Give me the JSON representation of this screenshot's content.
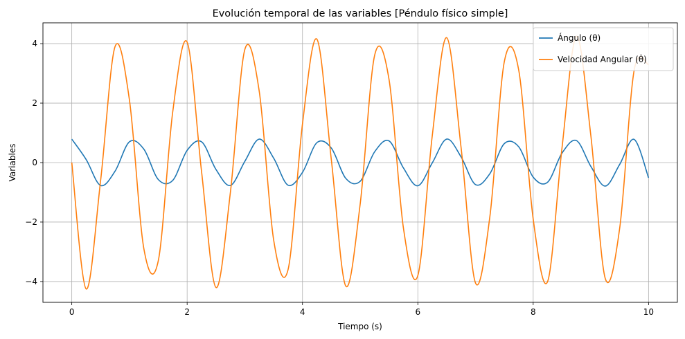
{
  "chart_data": {
    "type": "line",
    "title": "Evolución temporal de las variables [Péndulo físico simple]",
    "xlabel": "Tiempo (s)",
    "ylabel": "Variables",
    "xlim": [
      -0.5,
      10.5
    ],
    "ylim": [
      -4.7,
      4.7
    ],
    "xticks": [
      0,
      2,
      4,
      6,
      8,
      10
    ],
    "xtick_labels": [
      "0",
      "2",
      "4",
      "6",
      "8",
      "10"
    ],
    "yticks": [
      -4,
      -2,
      0,
      2,
      4
    ],
    "ytick_labels": [
      "−4",
      "−2",
      "0",
      "2",
      "4"
    ],
    "grid": true,
    "legend_position": "top-right",
    "x": [
      0,
      0.25,
      0.5,
      0.75,
      1,
      1.25,
      1.5,
      1.75,
      2,
      2.25,
      2.5,
      2.75,
      3,
      3.25,
      3.5,
      3.75,
      4,
      4.25,
      4.5,
      4.75,
      5,
      5.25,
      5.5,
      5.75,
      6,
      6.25,
      6.5,
      6.75,
      7,
      7.25,
      7.5,
      7.75,
      8,
      8.25,
      8.5,
      8.75,
      9,
      9.25,
      9.5,
      9.75,
      10
    ],
    "series": [
      {
        "name": "Ángulo (θ)",
        "color": "#1f77b4",
        "values": [
          0.79,
          0.1,
          -0.77,
          -0.29,
          0.7,
          0.45,
          -0.57,
          -0.6,
          0.41,
          0.7,
          -0.23,
          -0.77,
          0.04,
          0.79,
          0.15,
          -0.76,
          -0.33,
          0.67,
          0.49,
          -0.53,
          -0.63,
          0.36,
          0.73,
          -0.18,
          -0.78,
          -0.01,
          0.79,
          0.19,
          -0.74,
          -0.37,
          0.64,
          0.53,
          -0.49,
          -0.66,
          0.32,
          0.74,
          -0.13,
          -0.79,
          -0.06,
          0.78,
          -0.51
        ]
      },
      {
        "name": "Velocidad Angular (θ̇)",
        "color": "#ff7f0e",
        "values": [
          0.0,
          -4.25,
          -0.6,
          3.9,
          2.1,
          -2.9,
          -3.3,
          1.7,
          4.05,
          -0.3,
          -4.2,
          -1.0,
          3.8,
          2.4,
          -2.6,
          -3.6,
          1.3,
          4.15,
          0.1,
          -4.15,
          -1.4,
          3.6,
          2.8,
          -2.2,
          -3.8,
          0.9,
          4.2,
          0.5,
          -4.05,
          -1.8,
          3.4,
          3.1,
          -1.9,
          -4.0,
          0.5,
          4.25,
          0.9,
          -3.9,
          -2.2,
          3.1,
          3.3
        ]
      }
    ]
  }
}
